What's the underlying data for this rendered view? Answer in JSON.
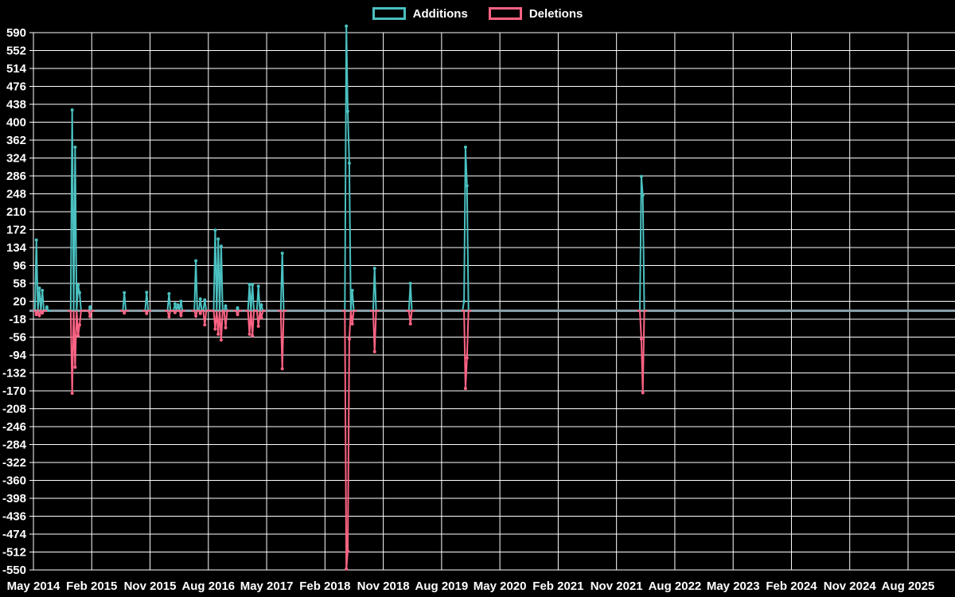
{
  "legend": {
    "items": [
      {
        "label": "Additions",
        "color": "#4bc0c0"
      },
      {
        "label": "Deletions",
        "color": "#ff6384"
      }
    ]
  },
  "chart_data": {
    "type": "line",
    "title": "",
    "grid": true,
    "legend_position": "top",
    "background_color": "#000000",
    "gridline_color": "#ffffff",
    "text_color": "#ffffff",
    "zero_line": {
      "value": 0,
      "color": "#8ca3ab"
    },
    "y_axis": {
      "min": -550,
      "max": 590,
      "tick_step": 38,
      "tick_labels": [
        "590",
        "552",
        "514",
        "476",
        "438",
        "400",
        "362",
        "324",
        "286",
        "248",
        "210",
        "172",
        "134",
        "96",
        "58",
        "20",
        "-18",
        "-56",
        "-94",
        "-132",
        "-170",
        "-208",
        "-246",
        "-284",
        "-322",
        "-360",
        "-398",
        "-436",
        "-474",
        "-512",
        "-550"
      ]
    },
    "x_axis": {
      "unit": "weeks since May 2014",
      "total_weeks": 587,
      "tick_labels": [
        "May 2014",
        "Feb 2015",
        "Nov 2015",
        "Aug 2016",
        "May 2017",
        "Feb 2018",
        "Nov 2018",
        "Aug 2019",
        "May 2020",
        "Feb 2021",
        "Nov 2021",
        "Aug 2022",
        "May 2023",
        "Feb 2024",
        "Nov 2024",
        "Aug 2025"
      ]
    },
    "series": [
      {
        "name": "Additions",
        "color": "#4bc0c0",
        "default_value": 0,
        "points": [
          [
            2,
            150
          ],
          [
            4,
            48
          ],
          [
            6,
            43
          ],
          [
            9,
            8
          ],
          [
            26,
            426
          ],
          [
            28,
            347
          ],
          [
            30,
            54
          ],
          [
            31,
            38
          ],
          [
            38,
            8
          ],
          [
            61,
            38
          ],
          [
            76,
            39
          ],
          [
            91,
            36
          ],
          [
            95,
            15
          ],
          [
            97,
            12
          ],
          [
            99,
            20
          ],
          [
            109,
            106
          ],
          [
            112,
            25
          ],
          [
            115,
            23
          ],
          [
            122,
            171
          ],
          [
            124,
            152
          ],
          [
            126,
            137
          ],
          [
            129,
            10
          ],
          [
            137,
            6
          ],
          [
            145,
            56
          ],
          [
            147,
            55
          ],
          [
            151,
            52
          ],
          [
            153,
            12
          ],
          [
            167,
            122
          ],
          [
            210,
            604
          ],
          [
            211,
            423
          ],
          [
            212,
            313
          ],
          [
            214,
            43
          ],
          [
            229,
            90
          ],
          [
            253,
            58
          ],
          [
            289,
            20
          ],
          [
            290,
            347
          ],
          [
            291,
            265
          ],
          [
            408,
            285
          ],
          [
            409,
            245
          ]
        ]
      },
      {
        "name": "Deletions",
        "color": "#ff6384",
        "default_value": 0,
        "points": [
          [
            2,
            -8
          ],
          [
            4,
            -10
          ],
          [
            6,
            -5
          ],
          [
            26,
            -175
          ],
          [
            28,
            -120
          ],
          [
            30,
            -53
          ],
          [
            31,
            -30
          ],
          [
            38,
            -12
          ],
          [
            61,
            -5
          ],
          [
            76,
            -6
          ],
          [
            91,
            -13
          ],
          [
            95,
            -4
          ],
          [
            99,
            -10
          ],
          [
            109,
            -11
          ],
          [
            112,
            -6
          ],
          [
            115,
            -30
          ],
          [
            122,
            -39
          ],
          [
            124,
            -50
          ],
          [
            126,
            -62
          ],
          [
            129,
            -36
          ],
          [
            137,
            -8
          ],
          [
            145,
            -50
          ],
          [
            147,
            -53
          ],
          [
            151,
            -33
          ],
          [
            153,
            -15
          ],
          [
            167,
            -123
          ],
          [
            210,
            -548
          ],
          [
            211,
            -510
          ],
          [
            212,
            -60
          ],
          [
            214,
            -28
          ],
          [
            229,
            -87
          ],
          [
            253,
            -28
          ],
          [
            290,
            -165
          ],
          [
            291,
            -100
          ],
          [
            408,
            -60
          ],
          [
            409,
            -174
          ]
        ]
      }
    ]
  }
}
